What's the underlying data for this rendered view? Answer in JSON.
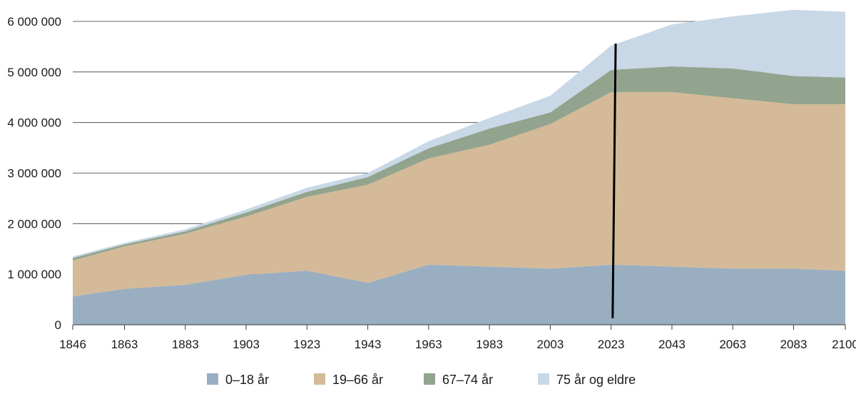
{
  "chart_data": {
    "type": "area",
    "stacked": true,
    "title": "",
    "xlabel": "",
    "ylabel": "",
    "ylim": [
      0,
      6000000
    ],
    "yticks": [
      0,
      1000000,
      2000000,
      3000000,
      4000000,
      5000000,
      6000000
    ],
    "ytick_labels": [
      "0",
      "1 000 000",
      "2 000 000",
      "3 000 000",
      "4 000 000",
      "5 000 000",
      "6 000 000"
    ],
    "xlim": [
      1846,
      2100
    ],
    "xtick_labels": [
      "1846",
      "1863",
      "1883",
      "1903",
      "1923",
      "1943",
      "1963",
      "1983",
      "2003",
      "2023",
      "2043",
      "2063",
      "2083",
      "2100"
    ],
    "grid": "horizontal",
    "legend_position": "bottom",
    "x": [
      1846,
      1863,
      1883,
      1903,
      1923,
      1943,
      1963,
      1983,
      2003,
      2023,
      2043,
      2063,
      2083,
      2100
    ],
    "series": [
      {
        "name": "0–18 år",
        "color": "#9aaec2",
        "values": [
          560000,
          710000,
          790000,
          990000,
          1070000,
          830000,
          1190000,
          1150000,
          1110000,
          1190000,
          1150000,
          1110000,
          1110000,
          1070000
        ]
      },
      {
        "name": "19–66 år",
        "color": "#d4ba98",
        "values": [
          710000,
          840000,
          1010000,
          1150000,
          1460000,
          1940000,
          2100000,
          2410000,
          2860000,
          3410000,
          3450000,
          3370000,
          3250000,
          3290000
        ]
      },
      {
        "name": "67–74 år",
        "color": "#93a48e",
        "values": [
          50000,
          40000,
          50000,
          80000,
          100000,
          150000,
          200000,
          320000,
          230000,
          440000,
          510000,
          590000,
          560000,
          530000
        ]
      },
      {
        "name": "75 år og eldre",
        "color": "#c9d8e7",
        "values": [
          30000,
          30000,
          40000,
          60000,
          80000,
          80000,
          140000,
          210000,
          330000,
          480000,
          830000,
          1030000,
          1310000,
          1300000
        ]
      }
    ],
    "annotations": [
      {
        "type": "vertical-line",
        "color": "#000000",
        "x_top": 2024.5,
        "y_top": 5560000,
        "x_bottom": 2023.5,
        "y_bottom": 130000
      }
    ]
  }
}
